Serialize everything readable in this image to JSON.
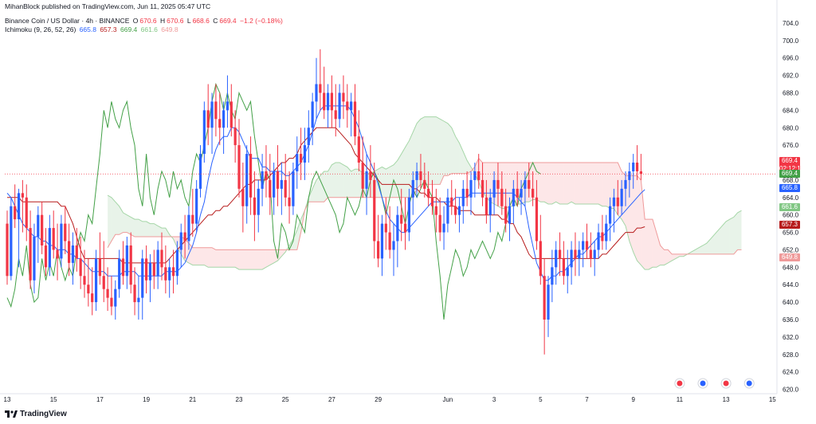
{
  "publisher": "MihanBlock published on TradingView.com, Jun 11, 2025 05:47 UTC",
  "header": {
    "symbol": "Binance Coin / US Dollar · 4h · BINANCE",
    "o_label": "O",
    "o": "670.6",
    "h_label": "H",
    "h": "670.6",
    "l_label": "L",
    "l": "668.6",
    "c_label": "C",
    "c": "669.4",
    "change": "−1.2 (−0.18%)",
    "indicator": "Ichimoku (9, 26, 52, 26)",
    "ind_values": [
      "665.8",
      "657.3",
      "669.4",
      "661.6",
      "649.8"
    ]
  },
  "logo": "TradingView",
  "colors": {
    "up": "#2962ff",
    "down": "#f23645",
    "conversion": "#2962ff",
    "base": "#b71c1c",
    "lagging": "#43a047",
    "lead_a": "#a5d6a7",
    "lead_b": "#ef9a9a",
    "cloud_green": "rgba(67,160,71,0.12)",
    "cloud_red": "rgba(242,54,69,0.12)"
  },
  "tags": [
    {
      "value": "669.4",
      "sub": "02:12:12",
      "color": "#f23645"
    },
    {
      "value": "669.4",
      "color": "#43a047"
    },
    {
      "value": "665.8",
      "color": "#2962ff"
    },
    {
      "value": "661.6",
      "color": "#81c784"
    },
    {
      "value": "657.3",
      "color": "#b71c1c"
    },
    {
      "value": "649.8",
      "color": "#ef9a9a"
    }
  ],
  "chart_data": {
    "type": "candlestick",
    "ylim": [
      619,
      706
    ],
    "y_ticks": [
      "704.0",
      "700.0",
      "696.0",
      "692.0",
      "688.0",
      "684.0",
      "680.0",
      "676.0",
      "672.0",
      "668.0",
      "664.0",
      "660.0",
      "656.0",
      "652.0",
      "648.0",
      "644.0",
      "640.0",
      "636.0",
      "632.0",
      "628.0",
      "624.0",
      "620.0"
    ],
    "x_ticks": [
      {
        "label": "13",
        "bar": 0
      },
      {
        "label": "15",
        "bar": 12
      },
      {
        "label": "17",
        "bar": 24
      },
      {
        "label": "19",
        "bar": 36
      },
      {
        "label": "21",
        "bar": 48
      },
      {
        "label": "23",
        "bar": 60
      },
      {
        "label": "25",
        "bar": 72
      },
      {
        "label": "27",
        "bar": 84
      },
      {
        "label": "29",
        "bar": 96
      },
      {
        "label": "Jun",
        "bar": 114
      },
      {
        "label": "3",
        "bar": 126
      },
      {
        "label": "5",
        "bar": 138
      },
      {
        "label": "7",
        "bar": 150
      },
      {
        "label": "9",
        "bar": 162
      },
      {
        "label": "11",
        "bar": 174
      },
      {
        "label": "13",
        "bar": 186
      },
      {
        "label": "15",
        "bar": 198
      }
    ],
    "current_price": 669.4,
    "candles": [
      [
        658,
        661,
        644,
        646
      ],
      [
        646,
        664,
        645,
        662
      ],
      [
        662,
        667,
        657,
        659
      ],
      [
        659,
        666,
        648,
        665
      ],
      [
        665,
        668,
        656,
        664
      ],
      [
        664,
        667,
        654,
        657
      ],
      [
        657,
        661,
        643,
        645
      ],
      [
        645,
        658,
        642,
        655
      ],
      [
        655,
        662,
        649,
        660
      ],
      [
        660,
        663,
        651,
        653
      ],
      [
        653,
        657,
        646,
        648
      ],
      [
        648,
        660,
        646,
        657
      ],
      [
        657,
        661,
        650,
        652
      ],
      [
        652,
        658,
        645,
        650
      ],
      [
        650,
        660,
        648,
        658
      ],
      [
        658,
        662,
        651,
        654
      ],
      [
        654,
        658,
        646,
        649
      ],
      [
        649,
        656,
        644,
        653
      ],
      [
        653,
        657,
        647,
        650
      ],
      [
        650,
        655,
        643,
        646
      ],
      [
        646,
        652,
        641,
        644
      ],
      [
        644,
        650,
        639,
        642
      ],
      [
        642,
        648,
        637,
        640
      ],
      [
        640,
        652,
        638,
        650
      ],
      [
        650,
        656,
        644,
        646
      ],
      [
        646,
        654,
        640,
        643
      ],
      [
        643,
        648,
        638,
        641
      ],
      [
        641,
        646,
        637,
        639
      ],
      [
        639,
        645,
        636,
        643
      ],
      [
        643,
        652,
        641,
        650
      ],
      [
        650,
        654,
        644,
        646
      ],
      [
        646,
        655,
        643,
        653
      ],
      [
        653,
        656,
        642,
        644
      ],
      [
        644,
        648,
        637,
        640
      ],
      [
        640,
        646,
        636,
        641
      ],
      [
        641,
        652,
        636,
        650
      ],
      [
        650,
        653,
        642,
        645
      ],
      [
        645,
        651,
        640,
        649
      ],
      [
        649,
        652,
        643,
        646
      ],
      [
        646,
        654,
        643,
        652
      ],
      [
        652,
        656,
        645,
        648
      ],
      [
        648,
        653,
        642,
        645
      ],
      [
        645,
        650,
        641,
        648
      ],
      [
        648,
        652,
        642,
        646
      ],
      [
        646,
        654,
        644,
        652
      ],
      [
        652,
        658,
        648,
        656
      ],
      [
        656,
        660,
        650,
        654
      ],
      [
        654,
        662,
        652,
        660
      ],
      [
        660,
        666,
        655,
        658
      ],
      [
        658,
        668,
        656,
        666
      ],
      [
        666,
        676,
        664,
        674
      ],
      [
        674,
        686,
        672,
        684
      ],
      [
        684,
        690,
        676,
        680
      ],
      [
        680,
        688,
        674,
        686
      ],
      [
        686,
        690,
        678,
        682
      ],
      [
        682,
        688,
        676,
        680
      ],
      [
        680,
        686,
        674,
        684
      ],
      [
        684,
        692,
        680,
        686
      ],
      [
        686,
        690,
        678,
        680
      ],
      [
        680,
        684,
        672,
        676
      ],
      [
        676,
        682,
        664,
        666
      ],
      [
        666,
        672,
        656,
        662
      ],
      [
        662,
        676,
        658,
        674
      ],
      [
        674,
        678,
        660,
        664
      ],
      [
        664,
        670,
        654,
        660
      ],
      [
        660,
        668,
        656,
        666
      ],
      [
        666,
        674,
        662,
        670
      ],
      [
        670,
        676,
        664,
        668
      ],
      [
        668,
        674,
        660,
        664
      ],
      [
        664,
        672,
        660,
        670
      ],
      [
        670,
        676,
        662,
        666
      ],
      [
        666,
        672,
        660,
        668
      ],
      [
        668,
        674,
        662,
        664
      ],
      [
        664,
        670,
        658,
        662
      ],
      [
        662,
        672,
        660,
        670
      ],
      [
        670,
        678,
        666,
        674
      ],
      [
        674,
        680,
        668,
        672
      ],
      [
        672,
        680,
        668,
        676
      ],
      [
        676,
        684,
        672,
        680
      ],
      [
        680,
        688,
        676,
        686
      ],
      [
        686,
        696,
        682,
        690
      ],
      [
        690,
        698,
        684,
        688
      ],
      [
        688,
        694,
        682,
        684
      ],
      [
        684,
        690,
        680,
        688
      ],
      [
        688,
        692,
        680,
        684
      ],
      [
        684,
        690,
        678,
        682
      ],
      [
        682,
        690,
        680,
        688
      ],
      [
        688,
        692,
        682,
        686
      ],
      [
        686,
        690,
        680,
        684
      ],
      [
        684,
        688,
        678,
        686
      ],
      [
        686,
        690,
        676,
        678
      ],
      [
        678,
        684,
        670,
        672
      ],
      [
        672,
        678,
        664,
        666
      ],
      [
        666,
        674,
        660,
        670
      ],
      [
        670,
        676,
        664,
        668
      ],
      [
        668,
        672,
        650,
        654
      ],
      [
        654,
        660,
        648,
        650
      ],
      [
        650,
        660,
        646,
        658
      ],
      [
        658,
        664,
        652,
        656
      ],
      [
        656,
        662,
        650,
        652
      ],
      [
        652,
        658,
        646,
        654
      ],
      [
        654,
        662,
        648,
        660
      ],
      [
        660,
        666,
        654,
        658
      ],
      [
        658,
        664,
        652,
        656
      ],
      [
        656,
        666,
        654,
        664
      ],
      [
        664,
        670,
        660,
        668
      ],
      [
        668,
        672,
        664,
        670
      ],
      [
        670,
        674,
        666,
        668
      ],
      [
        668,
        672,
        664,
        666
      ],
      [
        666,
        670,
        662,
        664
      ],
      [
        664,
        668,
        660,
        662
      ],
      [
        662,
        666,
        656,
        660
      ],
      [
        660,
        664,
        654,
        656
      ],
      [
        656,
        662,
        652,
        658
      ],
      [
        658,
        666,
        656,
        664
      ],
      [
        664,
        668,
        660,
        662
      ],
      [
        662,
        666,
        658,
        660
      ],
      [
        660,
        664,
        656,
        662
      ],
      [
        662,
        668,
        658,
        666
      ],
      [
        666,
        670,
        662,
        664
      ],
      [
        664,
        670,
        660,
        668
      ],
      [
        668,
        672,
        664,
        670
      ],
      [
        670,
        674,
        666,
        668
      ],
      [
        668,
        672,
        662,
        664
      ],
      [
        664,
        668,
        658,
        660
      ],
      [
        660,
        666,
        656,
        664
      ],
      [
        664,
        670,
        660,
        668
      ],
      [
        668,
        672,
        662,
        666
      ],
      [
        666,
        670,
        660,
        662
      ],
      [
        662,
        666,
        656,
        658
      ],
      [
        658,
        664,
        654,
        662
      ],
      [
        662,
        668,
        658,
        666
      ],
      [
        666,
        670,
        662,
        664
      ],
      [
        664,
        668,
        660,
        666
      ],
      [
        666,
        670,
        662,
        668
      ],
      [
        668,
        672,
        664,
        666
      ],
      [
        666,
        670,
        662,
        664
      ],
      [
        664,
        668,
        652,
        654
      ],
      [
        654,
        660,
        644,
        646
      ],
      [
        646,
        650,
        628,
        636
      ],
      [
        636,
        646,
        632,
        644
      ],
      [
        644,
        652,
        640,
        648
      ],
      [
        648,
        654,
        644,
        652
      ],
      [
        652,
        656,
        646,
        650
      ],
      [
        650,
        654,
        644,
        646
      ],
      [
        646,
        652,
        642,
        648
      ],
      [
        648,
        654,
        644,
        652
      ],
      [
        652,
        656,
        646,
        650
      ],
      [
        650,
        654,
        646,
        652
      ],
      [
        652,
        656,
        648,
        654
      ],
      [
        654,
        658,
        650,
        652
      ],
      [
        652,
        656,
        648,
        650
      ],
      [
        650,
        654,
        646,
        652
      ],
      [
        652,
        658,
        650,
        656
      ],
      [
        656,
        660,
        652,
        654
      ],
      [
        654,
        660,
        652,
        658
      ],
      [
        658,
        664,
        654,
        662
      ],
      [
        662,
        666,
        656,
        664
      ],
      [
        664,
        668,
        660,
        662
      ],
      [
        662,
        668,
        660,
        666
      ],
      [
        666,
        670,
        662,
        668
      ],
      [
        668,
        672,
        664,
        670
      ],
      [
        670,
        674,
        666,
        672
      ],
      [
        672,
        676,
        668,
        670
      ],
      [
        670,
        674,
        668,
        669.4
      ]
    ],
    "conversion_line": [
      665,
      664,
      662,
      660,
      658,
      657,
      656,
      655,
      655,
      654,
      654,
      653,
      653,
      652,
      652,
      652,
      651,
      651,
      650,
      650,
      649,
      648,
      647,
      647,
      647,
      647,
      646,
      646,
      646,
      646,
      647,
      647,
      647,
      647,
      646,
      646,
      646,
      646,
      646,
      646,
      646,
      647,
      647,
      647,
      647,
      648,
      649,
      651,
      653,
      656,
      660,
      663,
      668,
      672,
      675,
      677,
      678,
      678,
      680,
      680,
      679,
      677,
      675,
      673,
      673,
      673,
      671,
      671,
      670,
      670,
      670,
      670,
      669,
      669,
      670,
      671,
      672,
      674,
      676,
      679,
      682,
      684,
      685,
      685,
      685,
      685,
      685,
      685,
      685,
      684,
      682,
      680,
      677,
      674,
      672,
      670,
      667,
      664,
      661,
      659,
      658,
      657,
      656,
      656,
      657,
      658,
      659,
      660,
      661,
      662,
      663,
      663,
      663,
      663,
      663,
      663,
      664,
      664,
      664,
      664,
      665,
      665,
      665,
      665,
      665,
      665,
      665,
      665,
      665,
      665,
      665,
      665,
      664,
      663,
      662,
      657,
      653,
      649,
      647,
      645,
      645,
      646,
      646,
      647,
      647,
      648,
      649,
      650,
      651,
      651,
      652,
      653,
      654,
      655,
      655,
      656,
      657,
      658,
      659,
      660,
      661,
      662,
      663,
      664,
      665,
      665.8
    ],
    "base_line": [
      664,
      664,
      664,
      664,
      663,
      663,
      663,
      663,
      663,
      663,
      663,
      663,
      663,
      663,
      662,
      662,
      660,
      658,
      655,
      652,
      650,
      650,
      650,
      650,
      650,
      650,
      650,
      650,
      650,
      650,
      649,
      649,
      649,
      649,
      649,
      649,
      649,
      649,
      649,
      649,
      649,
      649,
      650,
      651,
      652,
      653,
      654,
      655,
      656,
      657,
      658,
      659,
      660,
      660,
      661,
      661,
      662,
      662,
      663,
      664,
      665,
      666,
      667,
      667,
      668,
      668,
      668,
      668,
      669,
      670,
      671,
      672,
      672,
      673,
      673,
      674,
      676,
      677,
      678,
      679,
      680,
      680,
      680,
      680,
      680,
      680,
      679,
      678,
      677,
      676,
      674,
      673,
      672,
      671,
      670,
      669,
      668,
      667,
      667,
      667,
      667,
      667,
      667,
      667,
      667,
      666,
      666,
      665,
      665,
      664,
      664,
      664,
      663,
      663,
      662,
      662,
      662,
      661,
      661,
      661,
      661,
      660,
      660,
      660,
      660,
      660,
      660,
      660,
      659,
      659,
      658,
      658,
      656,
      655,
      653,
      651,
      650,
      650,
      650,
      650,
      650,
      650,
      650,
      650,
      650,
      650,
      650,
      650,
      650,
      650,
      650,
      650,
      650,
      650,
      651,
      651,
      652,
      653,
      654,
      655,
      656,
      656,
      656,
      657,
      657,
      657.3
    ]
  }
}
